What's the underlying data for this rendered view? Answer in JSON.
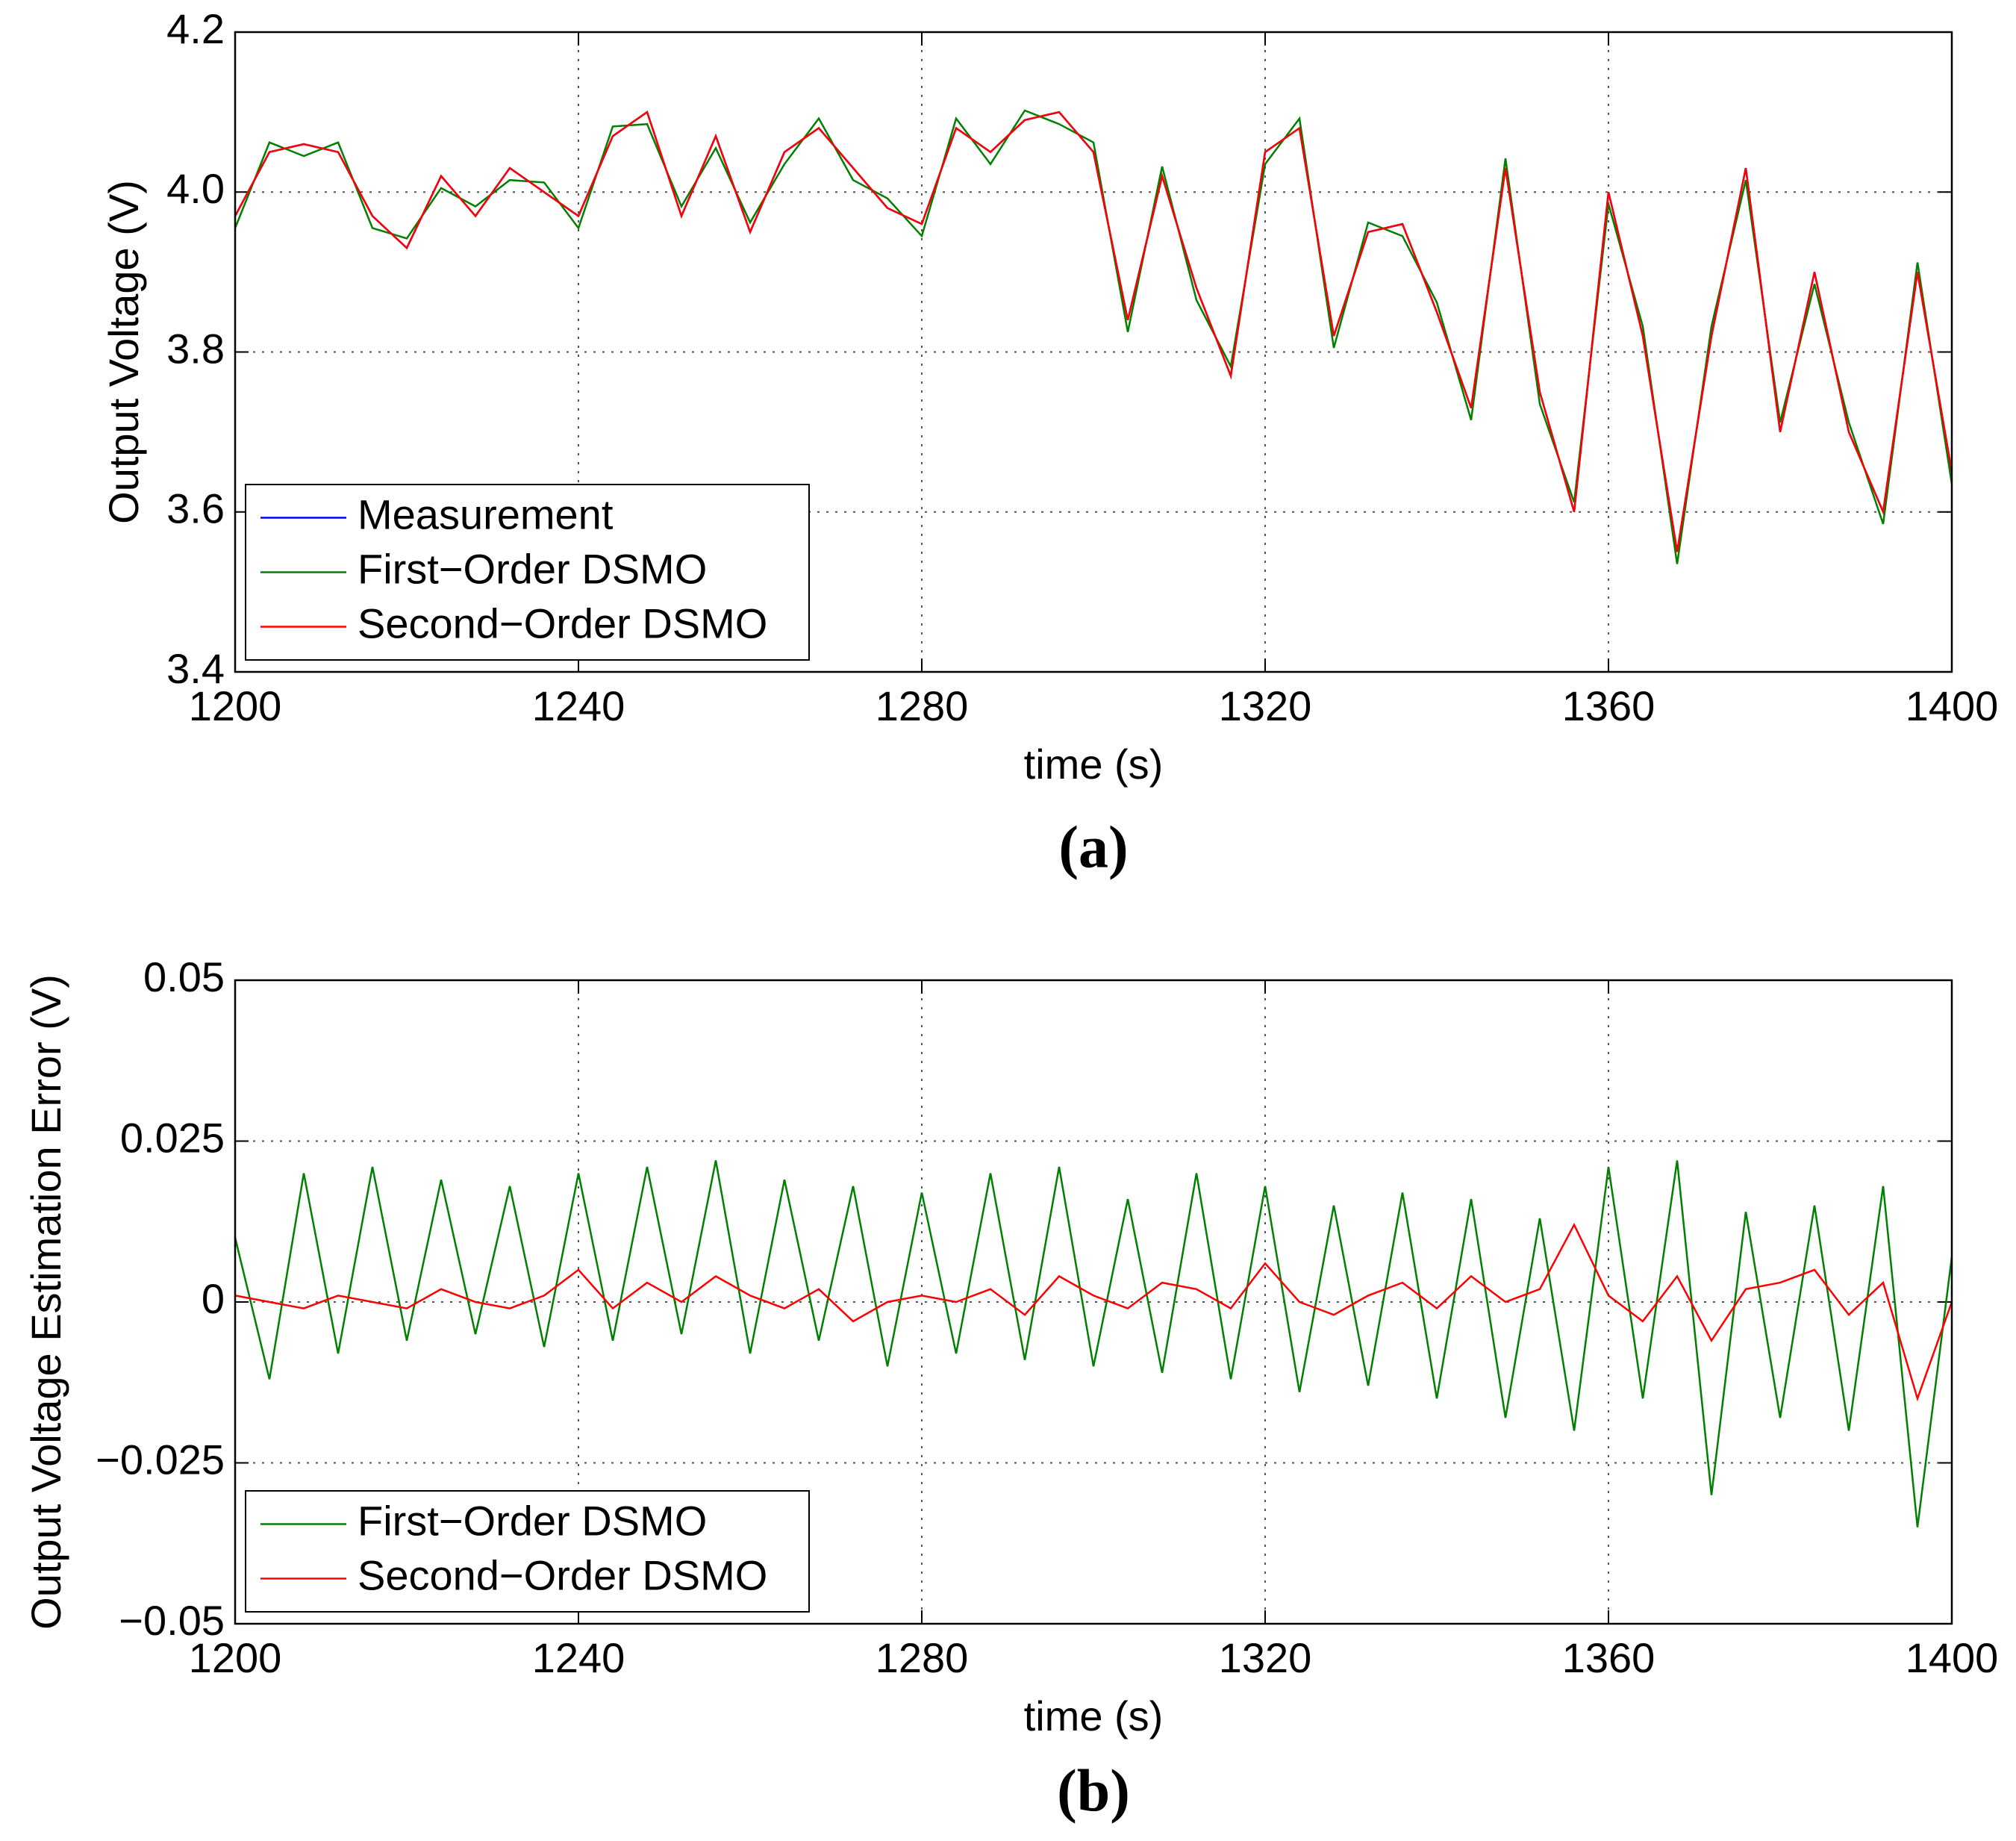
{
  "chart_data": [
    {
      "type": "line",
      "panel_label": "(a)",
      "xlabel": "time (s)",
      "ylabel": "Output Voltage (V)",
      "x": [
        1200,
        1204,
        1208,
        1212,
        1216,
        1220,
        1224,
        1228,
        1232,
        1236,
        1240,
        1244,
        1248,
        1252,
        1256,
        1260,
        1264,
        1268,
        1272,
        1276,
        1280,
        1284,
        1288,
        1292,
        1296,
        1300,
        1304,
        1308,
        1312,
        1316,
        1320,
        1324,
        1328,
        1332,
        1336,
        1340,
        1344,
        1348,
        1352,
        1356,
        1360,
        1364,
        1368,
        1372,
        1376,
        1380,
        1384,
        1388,
        1392,
        1396,
        1400
      ],
      "series": [
        {
          "name": "Measurement",
          "color": "#0000ff",
          "values": [
            3.97,
            4.05,
            4.06,
            4.05,
            3.97,
            3.93,
            4.02,
            3.97,
            4.03,
            4.0,
            3.97,
            4.07,
            4.1,
            3.97,
            4.07,
            3.95,
            4.05,
            4.08,
            4.03,
            3.98,
            3.96,
            4.08,
            4.05,
            4.09,
            4.1,
            4.05,
            3.84,
            4.02,
            3.88,
            3.77,
            4.05,
            4.08,
            3.82,
            3.95,
            3.96,
            3.85,
            3.73,
            4.03,
            3.75,
            3.6,
            4.0,
            3.82,
            3.55,
            3.82,
            4.03,
            3.7,
            3.9,
            3.7,
            3.6,
            3.9,
            3.65
          ]
        },
        {
          "name": "First−Order DSMO",
          "color": "#008000",
          "values": [
            3.955,
            4.062,
            4.045,
            4.062,
            3.955,
            3.942,
            4.005,
            3.982,
            4.015,
            4.012,
            3.955,
            4.082,
            4.085,
            3.982,
            4.055,
            3.962,
            4.035,
            4.092,
            4.015,
            3.992,
            3.945,
            4.092,
            4.035,
            4.102,
            4.085,
            4.062,
            3.825,
            4.032,
            3.865,
            3.782,
            4.035,
            4.092,
            3.805,
            3.962,
            3.945,
            3.862,
            3.715,
            4.042,
            3.735,
            3.612,
            3.985,
            3.832,
            3.535,
            3.832,
            4.015,
            3.712,
            3.885,
            3.712,
            3.585,
            3.912,
            3.635
          ]
        },
        {
          "name": "Second−Order DSMO",
          "color": "#ff0000",
          "values": [
            3.97,
            4.05,
            4.06,
            4.05,
            3.97,
            3.93,
            4.02,
            3.97,
            4.03,
            4.0,
            3.97,
            4.07,
            4.1,
            3.97,
            4.07,
            3.95,
            4.05,
            4.08,
            4.03,
            3.98,
            3.96,
            4.08,
            4.05,
            4.09,
            4.1,
            4.05,
            3.84,
            4.02,
            3.88,
            3.77,
            4.05,
            4.08,
            3.82,
            3.95,
            3.96,
            3.85,
            3.73,
            4.03,
            3.75,
            3.6,
            4.0,
            3.82,
            3.55,
            3.82,
            4.03,
            3.7,
            3.9,
            3.7,
            3.6,
            3.9,
            3.65
          ]
        }
      ],
      "xlim": [
        1200,
        1400
      ],
      "xticks": [
        1200,
        1240,
        1280,
        1320,
        1360,
        1400
      ],
      "ylim": [
        3.4,
        4.2
      ],
      "yticks": [
        3.4,
        3.6,
        3.8,
        {
          "value": 4,
          "label": "4.0"
        },
        4.2
      ],
      "grid": true,
      "legend": "lower left"
    },
    {
      "type": "line",
      "panel_label": "(b)",
      "xlabel": "time (s)",
      "ylabel": "Output Voltage Estimation Error (V)",
      "x": [
        1200,
        1204,
        1208,
        1212,
        1216,
        1220,
        1224,
        1228,
        1232,
        1236,
        1240,
        1244,
        1248,
        1252,
        1256,
        1260,
        1264,
        1268,
        1272,
        1276,
        1280,
        1284,
        1288,
        1292,
        1296,
        1300,
        1304,
        1308,
        1312,
        1316,
        1320,
        1324,
        1328,
        1332,
        1336,
        1340,
        1344,
        1348,
        1352,
        1356,
        1360,
        1364,
        1368,
        1372,
        1376,
        1380,
        1384,
        1388,
        1392,
        1396,
        1400
      ],
      "series": [
        {
          "name": "First−Order DSMO",
          "color": "#008000",
          "values": [
            0.01,
            -0.012,
            0.02,
            -0.008,
            0.021,
            -0.006,
            0.019,
            -0.005,
            0.018,
            -0.007,
            0.02,
            -0.006,
            0.021,
            -0.005,
            0.022,
            -0.008,
            0.019,
            -0.006,
            0.018,
            -0.01,
            0.017,
            -0.008,
            0.02,
            -0.009,
            0.021,
            -0.01,
            0.016,
            -0.011,
            0.02,
            -0.012,
            0.018,
            -0.014,
            0.015,
            -0.013,
            0.017,
            -0.015,
            0.016,
            -0.018,
            0.013,
            -0.02,
            0.021,
            -0.015,
            0.022,
            -0.03,
            0.014,
            -0.018,
            0.015,
            -0.02,
            0.018,
            -0.035,
            0.007
          ]
        },
        {
          "name": "Second−Order DSMO",
          "color": "#ff0000",
          "values": [
            0.001,
            0,
            -0.001,
            0.001,
            0,
            -0.001,
            0.002,
            0,
            -0.001,
            0.001,
            0.005,
            -0.001,
            0.003,
            0,
            0.004,
            0.001,
            -0.001,
            0.002,
            -0.003,
            0,
            0.001,
            0,
            0.002,
            -0.002,
            0.004,
            0.001,
            -0.001,
            0.003,
            0.002,
            -0.001,
            0.006,
            0,
            -0.002,
            0.001,
            0.003,
            -0.001,
            0.004,
            0,
            0.002,
            0.012,
            0.001,
            -0.003,
            0.004,
            -0.006,
            0.002,
            0.003,
            0.005,
            -0.002,
            0.003,
            -0.015,
            0
          ]
        }
      ],
      "xlim": [
        1200,
        1400
      ],
      "xticks": [
        1200,
        1240,
        1280,
        1320,
        1360,
        1400
      ],
      "ylim": [
        -0.05,
        0.05
      ],
      "yticks": [
        {
          "value": -0.05,
          "label": "−0.05"
        },
        {
          "value": -0.025,
          "label": "−0.025"
        },
        0,
        0.025,
        0.05
      ],
      "grid": true,
      "legend": "lower left"
    }
  ]
}
